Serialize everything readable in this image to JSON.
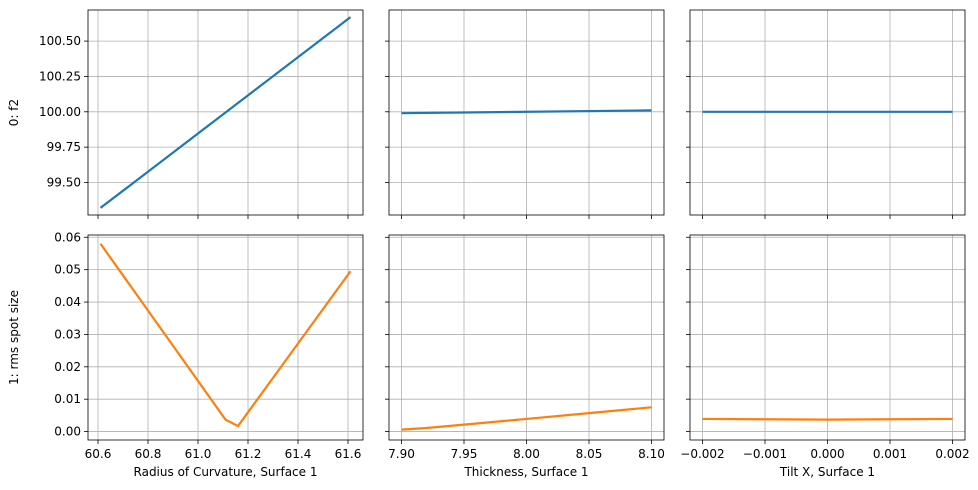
{
  "chart_data": [
    {
      "type": "line",
      "row": 0,
      "col": 0,
      "ylabel": "0: f2",
      "xlabel": "",
      "xlim": [
        60.56,
        61.66
      ],
      "ylim": [
        99.27,
        100.72
      ],
      "xticks": [
        60.6,
        60.8,
        61.0,
        61.2,
        61.4,
        61.6
      ],
      "xtick_labels": [],
      "yticks": [
        99.5,
        99.75,
        100.0,
        100.25,
        100.5
      ],
      "ytick_labels": [
        "99.50",
        "99.75",
        "100.00",
        "100.25",
        "100.50"
      ],
      "series": [
        {
          "color": "#1f77b4",
          "x": [
            60.61,
            61.61
          ],
          "y": [
            99.32,
            100.67
          ]
        }
      ]
    },
    {
      "type": "line",
      "row": 0,
      "col": 1,
      "ylabel": "",
      "xlabel": "",
      "xlim": [
        7.89,
        8.11
      ],
      "ylim": [
        99.27,
        100.72
      ],
      "xticks": [
        7.9,
        7.95,
        8.0,
        8.05,
        8.1
      ],
      "xtick_labels": [],
      "yticks": [
        99.5,
        99.75,
        100.0,
        100.25,
        100.5
      ],
      "ytick_labels": [],
      "series": [
        {
          "color": "#1f77b4",
          "x": [
            7.9,
            8.1
          ],
          "y": [
            99.99,
            100.01
          ]
        }
      ]
    },
    {
      "type": "line",
      "row": 0,
      "col": 2,
      "ylabel": "",
      "xlabel": "",
      "xlim": [
        -0.0022,
        0.0022
      ],
      "ylim": [
        99.27,
        100.72
      ],
      "xticks": [
        -0.002,
        -0.001,
        0.0,
        0.001,
        0.002
      ],
      "xtick_labels": [],
      "yticks": [
        99.5,
        99.75,
        100.0,
        100.25,
        100.5
      ],
      "ytick_labels": [],
      "series": [
        {
          "color": "#1f77b4",
          "x": [
            -0.002,
            0.002
          ],
          "y": [
            100.0,
            100.0
          ]
        }
      ]
    },
    {
      "type": "line",
      "row": 1,
      "col": 0,
      "ylabel": "1: rms spot size",
      "xlabel": "Radius of Curvature, Surface 1",
      "xlim": [
        60.56,
        61.66
      ],
      "ylim": [
        -0.0026,
        0.0607
      ],
      "xticks": [
        60.6,
        60.8,
        61.0,
        61.2,
        61.4,
        61.6
      ],
      "xtick_labels": [
        "60.6",
        "60.8",
        "61.0",
        "61.2",
        "61.4",
        "61.6"
      ],
      "yticks": [
        0.0,
        0.01,
        0.02,
        0.03,
        0.04,
        0.05,
        0.06
      ],
      "ytick_labels": [
        "0.00",
        "0.01",
        "0.02",
        "0.03",
        "0.04",
        "0.05",
        "0.06"
      ],
      "series": [
        {
          "color": "#ff7f0e",
          "x": [
            60.61,
            61.11,
            61.16,
            61.61
          ],
          "y": [
            0.058,
            0.0037,
            0.0017,
            0.0495
          ]
        }
      ]
    },
    {
      "type": "line",
      "row": 1,
      "col": 1,
      "ylabel": "",
      "xlabel": "Thickness, Surface 1",
      "xlim": [
        7.89,
        8.11
      ],
      "ylim": [
        -0.0026,
        0.0607
      ],
      "xticks": [
        7.9,
        7.95,
        8.0,
        8.05,
        8.1
      ],
      "xtick_labels": [
        "7.90",
        "7.95",
        "8.00",
        "8.05",
        "8.10"
      ],
      "yticks": [
        0.0,
        0.01,
        0.02,
        0.03,
        0.04,
        0.05,
        0.06
      ],
      "ytick_labels": [],
      "series": [
        {
          "color": "#ff7f0e",
          "x": [
            7.9,
            7.92,
            7.96,
            8.0,
            8.05,
            8.1
          ],
          "y": [
            0.0006,
            0.0011,
            0.0025,
            0.0039,
            0.0057,
            0.0075
          ]
        }
      ]
    },
    {
      "type": "line",
      "row": 1,
      "col": 2,
      "ylabel": "",
      "xlabel": "Tilt X, Surface 1",
      "xlim": [
        -0.0022,
        0.0022
      ],
      "ylim": [
        -0.0026,
        0.0607
      ],
      "xticks": [
        -0.002,
        -0.001,
        0.0,
        0.001,
        0.002
      ],
      "xtick_labels": [
        "−0.002",
        "−0.001",
        "0.000",
        "0.001",
        "0.002"
      ],
      "yticks": [
        0.0,
        0.01,
        0.02,
        0.03,
        0.04,
        0.05,
        0.06
      ],
      "ytick_labels": [],
      "series": [
        {
          "color": "#ff7f0e",
          "x": [
            -0.002,
            0.0,
            0.002
          ],
          "y": [
            0.0039,
            0.0037,
            0.0039
          ]
        }
      ]
    }
  ]
}
